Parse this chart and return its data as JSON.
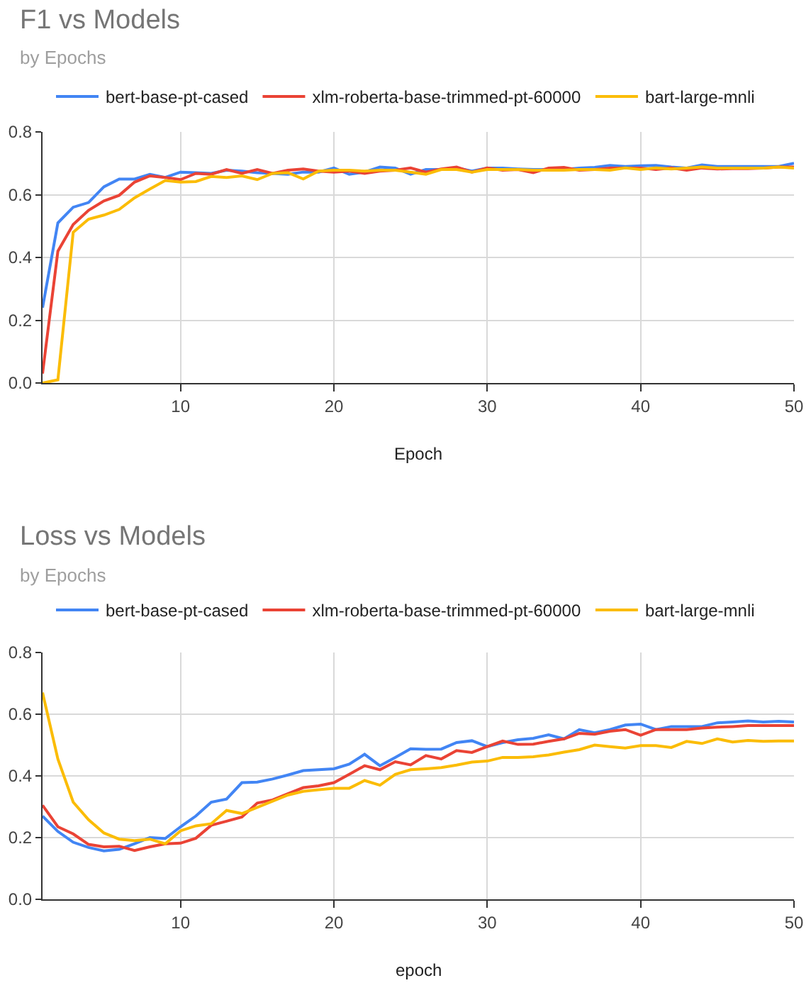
{
  "chart_data": [
    {
      "type": "line",
      "title": "F1 vs Models",
      "subtitle": "by Epochs",
      "xlabel": "Epoch",
      "x": [
        1,
        2,
        3,
        4,
        5,
        6,
        7,
        8,
        9,
        10,
        11,
        12,
        13,
        14,
        15,
        16,
        17,
        18,
        19,
        20,
        21,
        22,
        23,
        24,
        25,
        26,
        27,
        28,
        29,
        30,
        31,
        32,
        33,
        34,
        35,
        36,
        37,
        38,
        39,
        40,
        41,
        42,
        43,
        44,
        45,
        46,
        47,
        48,
        49,
        50
      ],
      "xlim": [
        1,
        50
      ],
      "xticks": [
        10,
        20,
        30,
        40,
        50
      ],
      "ylim": [
        0,
        0.8
      ],
      "yticks": [
        {
          "value": 0,
          "label": "0.0"
        },
        0.2,
        0.4,
        0.6,
        0.8
      ],
      "grid": true,
      "legend": "top",
      "marker": "none",
      "line_style": "solid",
      "series": [
        {
          "name": "bert-base-pt-cased",
          "color": "#4285f4",
          "values": [
            0.24,
            0.51,
            0.56,
            0.575,
            0.625,
            0.65,
            0.65,
            0.665,
            0.655,
            0.672,
            0.67,
            0.668,
            0.678,
            0.675,
            0.67,
            0.668,
            0.665,
            0.672,
            0.672,
            0.685,
            0.665,
            0.672,
            0.688,
            0.685,
            0.665,
            0.68,
            0.68,
            0.685,
            0.675,
            0.685,
            0.685,
            0.682,
            0.68,
            0.68,
            0.68,
            0.685,
            0.687,
            0.693,
            0.69,
            0.692,
            0.693,
            0.688,
            0.685,
            0.695,
            0.69,
            0.69,
            0.69,
            0.69,
            0.69,
            0.7
          ]
        },
        {
          "name": "xlm-roberta-base-trimmed-pt-60000",
          "color": "#ea4335",
          "values": [
            0.03,
            0.42,
            0.505,
            0.55,
            0.58,
            0.598,
            0.64,
            0.66,
            0.655,
            0.648,
            0.668,
            0.665,
            0.68,
            0.668,
            0.68,
            0.668,
            0.678,
            0.682,
            0.675,
            0.672,
            0.675,
            0.668,
            0.675,
            0.678,
            0.685,
            0.672,
            0.682,
            0.688,
            0.672,
            0.685,
            0.678,
            0.68,
            0.67,
            0.685,
            0.687,
            0.678,
            0.68,
            0.685,
            0.685,
            0.685,
            0.68,
            0.685,
            0.678,
            0.685,
            0.682,
            0.683,
            0.683,
            0.685,
            0.688,
            0.688
          ]
        },
        {
          "name": "bart-large-mnli",
          "color": "#fbbc04",
          "values": [
            0,
            0.01,
            0.48,
            0.522,
            0.535,
            0.553,
            0.59,
            0.618,
            0.645,
            0.64,
            0.642,
            0.658,
            0.655,
            0.66,
            0.648,
            0.668,
            0.67,
            0.65,
            0.675,
            0.678,
            0.678,
            0.675,
            0.678,
            0.678,
            0.672,
            0.665,
            0.68,
            0.68,
            0.672,
            0.68,
            0.68,
            0.68,
            0.678,
            0.678,
            0.678,
            0.68,
            0.68,
            0.678,
            0.685,
            0.68,
            0.685,
            0.682,
            0.685,
            0.688,
            0.685,
            0.685,
            0.685,
            0.685,
            0.688,
            0.685
          ]
        }
      ]
    },
    {
      "type": "line",
      "title": "Loss vs Models",
      "subtitle": "by Epochs",
      "xlabel": "epoch",
      "x": [
        1,
        2,
        3,
        4,
        5,
        6,
        7,
        8,
        9,
        10,
        11,
        12,
        13,
        14,
        15,
        16,
        17,
        18,
        19,
        20,
        21,
        22,
        23,
        24,
        25,
        26,
        27,
        28,
        29,
        30,
        31,
        32,
        33,
        34,
        35,
        36,
        37,
        38,
        39,
        40,
        41,
        42,
        43,
        44,
        45,
        46,
        47,
        48,
        49,
        50
      ],
      "xlim": [
        1,
        50
      ],
      "xticks": [
        10,
        20,
        30,
        40,
        50
      ],
      "ylim": [
        0,
        0.8
      ],
      "yticks": [
        {
          "value": 0,
          "label": "0.0"
        },
        0.2,
        0.4,
        0.6,
        0.8
      ],
      "grid": true,
      "legend": "top",
      "marker": "none",
      "line_style": "solid",
      "series": [
        {
          "name": "bert-base-pt-cased",
          "color": "#4285f4",
          "values": [
            0.27,
            0.22,
            0.185,
            0.168,
            0.157,
            0.162,
            0.18,
            0.2,
            0.197,
            0.235,
            0.27,
            0.315,
            0.325,
            0.378,
            0.38,
            0.39,
            0.403,
            0.417,
            0.42,
            0.423,
            0.438,
            0.47,
            0.433,
            0.46,
            0.488,
            0.486,
            0.487,
            0.508,
            0.514,
            0.495,
            0.508,
            0.517,
            0.522,
            0.533,
            0.52,
            0.55,
            0.54,
            0.55,
            0.565,
            0.568,
            0.55,
            0.56,
            0.56,
            0.56,
            0.572,
            0.575,
            0.578,
            0.575,
            0.577,
            0.575
          ]
        },
        {
          "name": "xlm-roberta-base-trimmed-pt-60000",
          "color": "#ea4335",
          "values": [
            0.305,
            0.235,
            0.212,
            0.178,
            0.17,
            0.172,
            0.158,
            0.17,
            0.18,
            0.182,
            0.198,
            0.24,
            0.253,
            0.267,
            0.312,
            0.322,
            0.342,
            0.362,
            0.368,
            0.378,
            0.405,
            0.433,
            0.42,
            0.446,
            0.436,
            0.466,
            0.455,
            0.482,
            0.476,
            0.495,
            0.513,
            0.502,
            0.503,
            0.512,
            0.52,
            0.538,
            0.535,
            0.545,
            0.55,
            0.532,
            0.55,
            0.55,
            0.55,
            0.555,
            0.558,
            0.56,
            0.563,
            0.563,
            0.563,
            0.563
          ]
        },
        {
          "name": "bart-large-mnli",
          "color": "#fbbc04",
          "values": [
            0.67,
            0.455,
            0.315,
            0.258,
            0.215,
            0.195,
            0.19,
            0.195,
            0.18,
            0.222,
            0.238,
            0.245,
            0.288,
            0.278,
            0.298,
            0.318,
            0.338,
            0.35,
            0.355,
            0.36,
            0.36,
            0.385,
            0.37,
            0.405,
            0.42,
            0.423,
            0.427,
            0.435,
            0.445,
            0.448,
            0.46,
            0.46,
            0.462,
            0.468,
            0.477,
            0.485,
            0.5,
            0.495,
            0.49,
            0.498,
            0.498,
            0.492,
            0.512,
            0.505,
            0.52,
            0.51,
            0.515,
            0.512,
            0.513,
            0.513
          ]
        }
      ]
    }
  ]
}
